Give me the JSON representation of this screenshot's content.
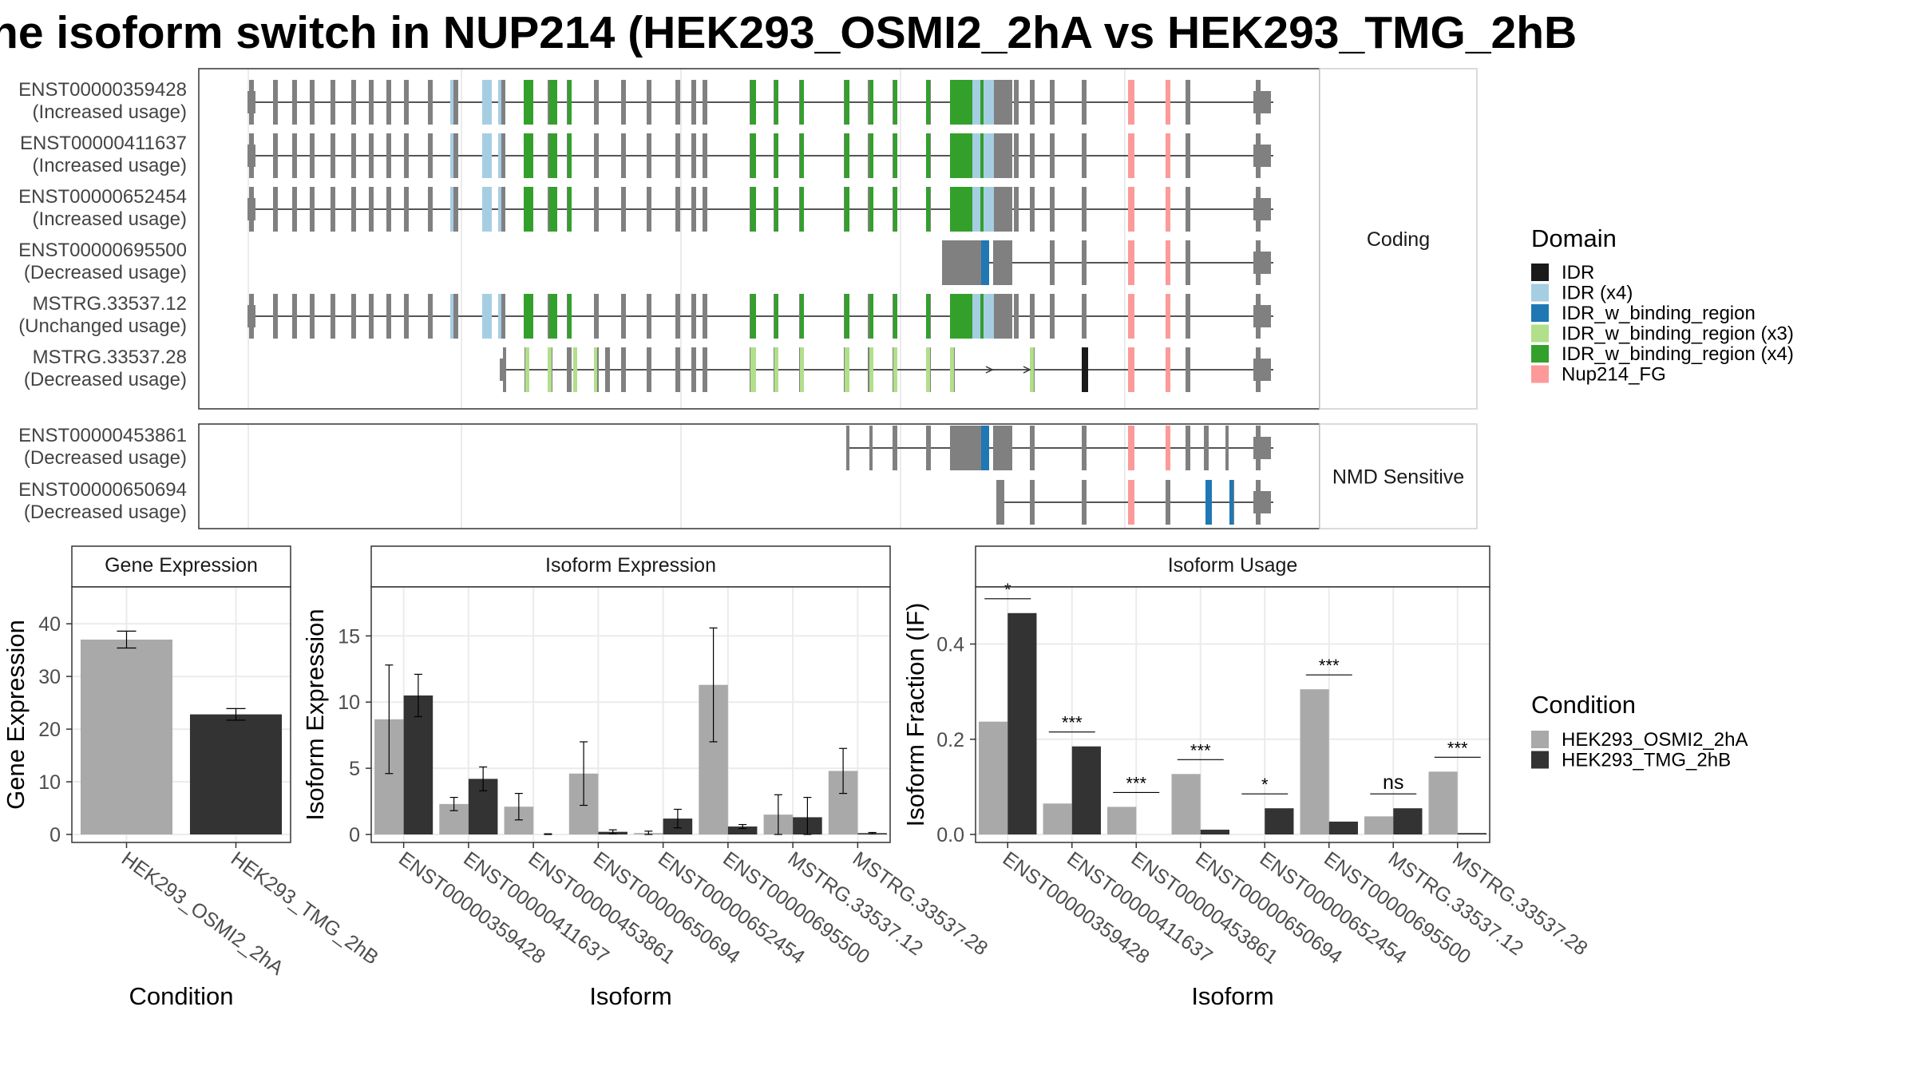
{
  "title": "he isoform switch in NUP214 (HEK293_OSMI2_2hA vs HEK293_TMG_2hB",
  "colors": {
    "exon": "#808080",
    "cond_a": "#a9a9a9",
    "cond_b": "#333333",
    "IDR": "#1a1a1a",
    "IDR_x4": "#a6cee3",
    "IDR_w_binding_region": "#1f78b4",
    "IDR_w_binding_region_x3": "#b2df8a",
    "IDR_w_binding_region_x4": "#33a02c",
    "Nup214_FG": "#fb9a99"
  },
  "structure": {
    "facets": [
      "Coding",
      "NMD Sensitive"
    ],
    "transcripts": [
      {
        "id": "ENST00000359428",
        "usage": "(Increased usage)",
        "facet": "Coding",
        "pattern": "full"
      },
      {
        "id": "ENST00000411637",
        "usage": "(Increased usage)",
        "facet": "Coding",
        "pattern": "full"
      },
      {
        "id": "ENST00000652454",
        "usage": "(Increased usage)",
        "facet": "Coding",
        "pattern": "full"
      },
      {
        "id": "ENST00000695500",
        "usage": "(Decreased usage)",
        "facet": "Coding",
        "pattern": "short3"
      },
      {
        "id": "MSTRG.33537.12",
        "usage": "(Unchanged usage)",
        "facet": "Coding",
        "pattern": "full"
      },
      {
        "id": "MSTRG.33537.28",
        "usage": "(Decreased usage)",
        "facet": "Coding",
        "pattern": "mstrg28"
      },
      {
        "id": "ENST00000453861",
        "usage": "(Decreased usage)",
        "facet": "NMD Sensitive",
        "pattern": "nmd1"
      },
      {
        "id": "ENST00000650694",
        "usage": "(Decreased usage)",
        "facet": "NMD Sensitive",
        "pattern": "nmd2"
      }
    ]
  },
  "legend_domain": {
    "title": "Domain",
    "items": [
      {
        "label": "IDR",
        "color": "#1a1a1a"
      },
      {
        "label": "IDR (x4)",
        "color": "#a6cee3"
      },
      {
        "label": "IDR_w_binding_region",
        "color": "#1f78b4"
      },
      {
        "label": "IDR_w_binding_region (x3)",
        "color": "#b2df8a"
      },
      {
        "label": "IDR_w_binding_region (x4)",
        "color": "#33a02c"
      },
      {
        "label": "Nup214_FG",
        "color": "#fb9a99"
      }
    ]
  },
  "legend_condition": {
    "title": "Condition",
    "items": [
      {
        "label": "HEK293_OSMI2_2hA",
        "color": "#a9a9a9"
      },
      {
        "label": "HEK293_TMG_2hB",
        "color": "#333333"
      }
    ]
  },
  "chart_data": [
    {
      "type": "bar",
      "panel": "Gene Expression",
      "xlabel": "Condition",
      "ylabel": "Gene Expression",
      "ylim": [
        0,
        47
      ],
      "yticks": [
        0,
        10,
        20,
        30,
        40
      ],
      "categories": [
        "HEK293_OSMI2_2hA",
        "HEK293_TMG_2hB"
      ],
      "values": [
        37.0,
        22.8
      ],
      "errors": [
        1.6,
        1.1
      ]
    },
    {
      "type": "bar",
      "panel": "Isoform Expression",
      "xlabel": "Isoform",
      "ylabel": "Isoform Expression",
      "ylim": [
        0,
        18.7
      ],
      "yticks": [
        0,
        5,
        10,
        15
      ],
      "categories": [
        "ENST00000359428",
        "ENST00000411637",
        "ENST00000453861",
        "ENST00000650694",
        "ENST00000652454",
        "ENST00000695500",
        "MSTRG.33537.12",
        "MSTRG.33537.28"
      ],
      "series": [
        {
          "name": "HEK293_OSMI2_2hA",
          "values": [
            8.7,
            2.3,
            2.1,
            4.6,
            0.1,
            11.3,
            1.5,
            4.8
          ],
          "errors": [
            4.1,
            0.5,
            1.0,
            2.4,
            0.15,
            4.3,
            1.5,
            1.7
          ]
        },
        {
          "name": "HEK293_TMG_2hB",
          "values": [
            10.5,
            4.2,
            0.0,
            0.2,
            1.2,
            0.6,
            1.3,
            0.1
          ],
          "errors": [
            1.6,
            0.9,
            0.05,
            0.15,
            0.7,
            0.15,
            1.5,
            0.05
          ]
        }
      ]
    },
    {
      "type": "bar",
      "panel": "Isoform Usage",
      "xlabel": "Isoform",
      "ylabel": "Isoform Fraction (IF)",
      "ylim": [
        0,
        0.52
      ],
      "yticks": [
        "0.0",
        "0.2",
        "0.4"
      ],
      "categories": [
        "ENST00000359428",
        "ENST00000411637",
        "ENST00000453861",
        "ENST00000650694",
        "ENST00000652454",
        "ENST00000695500",
        "MSTRG.33537.12",
        "MSTRG.33537.28"
      ],
      "series": [
        {
          "name": "HEK293_OSMI2_2hA",
          "values": [
            0.237,
            0.065,
            0.058,
            0.127,
            0.0,
            0.305,
            0.038,
            0.132
          ]
        },
        {
          "name": "HEK293_TMG_2hB",
          "values": [
            0.465,
            0.185,
            0.0,
            0.01,
            0.055,
            0.027,
            0.055,
            0.003
          ]
        }
      ],
      "significance": [
        "*",
        "***",
        "***",
        "***",
        "*",
        "***",
        "ns",
        "***"
      ]
    }
  ]
}
